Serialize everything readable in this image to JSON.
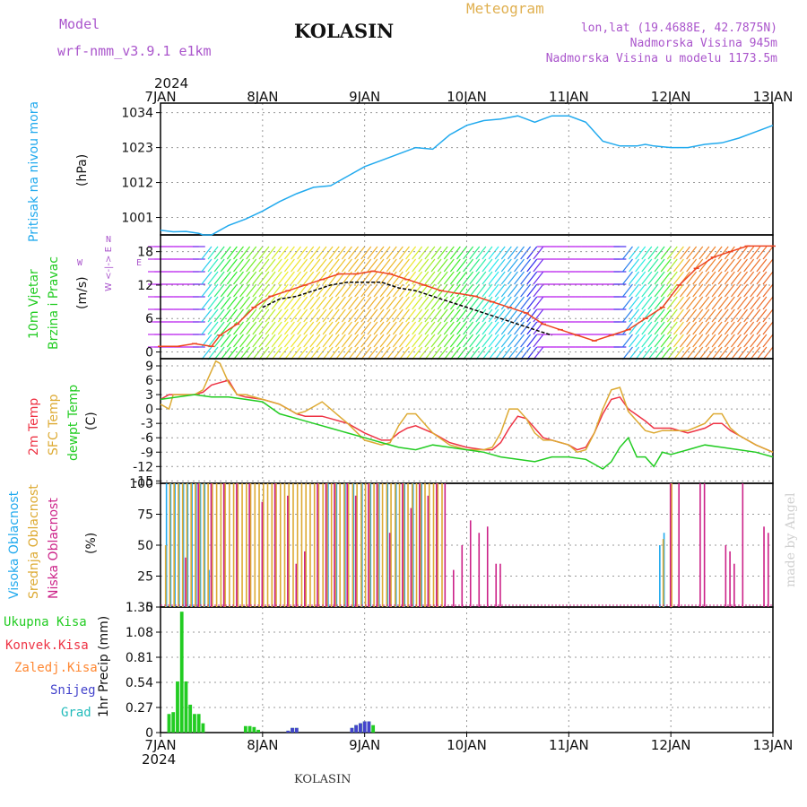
{
  "header": {
    "model_label": "Model",
    "model_name": "wrf-nmm_v3.9.1  e1km",
    "station": "KOLASIN",
    "meteogram": "Meteogram",
    "lonlat": "lon,lat (19.4688E, 42.7875N)",
    "elevation": "Nadmorska Visina 945m",
    "model_elevation": "Nadmorska Visina u modelu 1173.5m",
    "year_top": "2024",
    "year_bottom": "2024",
    "footer": "KOLASIN",
    "watermark": "made by Angel"
  },
  "colors": {
    "pressure": "#22aaee",
    "temp2m": "#ee3344",
    "sfc": "#ddaa33",
    "dew": "#22cc22",
    "high": "#22aaee",
    "mid": "#ddaa33",
    "low": "#cc2288",
    "total": "#22cc22",
    "conv": "#ee3344",
    "frozen": "#ff8833",
    "snow": "#4444cc",
    "grad": "#22bbbb"
  },
  "axis_labels": {
    "pressure": [
      "Pritisak na nivou mora",
      "(hPa)"
    ],
    "wind": [
      "10m Vjetar",
      "Brzina i Pravac",
      "(m/s)"
    ],
    "compass": [
      "N",
      "W <-|-> E",
      "S"
    ],
    "temp": [
      "2m Temp",
      "SFC Temp",
      "dewpt Temp",
      "(C)"
    ],
    "cloud": [
      "Visoka Oblacnost",
      "Srednja Oblacnost",
      "Niska Oblacnost",
      "(%)"
    ],
    "precip": [
      "1hr Precip",
      "(mm)"
    ],
    "precip_legend": [
      "Ukupna Kisa",
      "Konvek.Kisa",
      "Zaledj.Kisa",
      "Snijeg",
      "Grad"
    ]
  },
  "chart_data": [
    {
      "type": "line",
      "name": "pressure",
      "x_ticks": [
        "7JAN",
        "8JAN",
        "9JAN",
        "10JAN",
        "11JAN",
        "12JAN",
        "13JAN"
      ],
      "y_ticks": [
        1001,
        1012,
        1023,
        1034
      ],
      "ylim": [
        995.5,
        1037
      ],
      "xlim": [
        0,
        144
      ],
      "grid": true,
      "series": [
        {
          "color_key": "pressure",
          "x": [
            0,
            3,
            6,
            9,
            10,
            12,
            14,
            16,
            20,
            24,
            28,
            32,
            36,
            40,
            44,
            48,
            52,
            56,
            60,
            64,
            68,
            72,
            76,
            80,
            84,
            86,
            88,
            90,
            92,
            96,
            100,
            104,
            108,
            112,
            114,
            116,
            120,
            124,
            128,
            132,
            136,
            140,
            144
          ],
          "y": [
            997,
            996.5,
            996.6,
            996,
            995.5,
            995.5,
            997,
            998.5,
            1000.5,
            1003,
            1006,
            1008.5,
            1010.5,
            1011,
            1014,
            1017,
            1019,
            1021,
            1023,
            1022.5,
            1027,
            1030,
            1031.5,
            1032,
            1033,
            1032,
            1031,
            1032,
            1033,
            1033,
            1031,
            1025,
            1023.5,
            1023.5,
            1024,
            1023.5,
            1023,
            1023,
            1024,
            1024.5,
            1026,
            1028,
            1030
          ]
        }
      ]
    },
    {
      "type": "line",
      "name": "wind",
      "x_ticks": [
        "7JAN",
        "8JAN",
        "9JAN",
        "10JAN",
        "11JAN",
        "12JAN",
        "13JAN"
      ],
      "y_ticks": [
        0,
        6,
        12,
        18
      ],
      "ylim": [
        -1.2,
        21
      ],
      "xlim": [
        0,
        144
      ],
      "grid": true,
      "series": [
        {
          "name": "speed",
          "color": "#000000",
          "x": [
            24,
            28,
            32,
            36,
            40,
            44,
            48,
            52,
            56,
            60,
            64,
            68,
            72,
            76,
            80,
            84,
            88,
            92
          ],
          "y": [
            8,
            9.5,
            10,
            11,
            12,
            12.5,
            12.5,
            12.5,
            11.5,
            11,
            10,
            9,
            8,
            7,
            6,
            5,
            4,
            3
          ]
        },
        {
          "name": "gust",
          "color": "#ee4422",
          "x": [
            0,
            4,
            8,
            12,
            14,
            18,
            22,
            26,
            30,
            34,
            38,
            42,
            46,
            50,
            54,
            58,
            62,
            66,
            70,
            74,
            78,
            82,
            86,
            90,
            94,
            98,
            102,
            106,
            110,
            114,
            118,
            122,
            126,
            130,
            134,
            138,
            144
          ],
          "y": [
            1,
            1,
            1.5,
            1,
            3,
            5,
            8,
            10,
            11,
            12,
            13,
            14,
            14,
            14.5,
            14,
            13,
            12,
            11,
            10.5,
            10,
            9,
            8,
            7,
            5,
            4,
            3,
            2,
            3,
            4,
            6,
            8,
            12,
            15,
            17,
            18,
            19,
            19
          ]
        }
      ]
    },
    {
      "type": "line",
      "name": "temperature",
      "x_ticks": [
        "7JAN",
        "8JAN",
        "9JAN",
        "10JAN",
        "11JAN",
        "12JAN",
        "13JAN"
      ],
      "y_ticks": [
        -15,
        -12,
        -9,
        -6,
        -3,
        0,
        3,
        6,
        9
      ],
      "ylim": [
        -15.5,
        10.5
      ],
      "xlim": [
        0,
        144
      ],
      "grid": true,
      "series": [
        {
          "color_key": "temp2m",
          "x": [
            0,
            2,
            4,
            8,
            10,
            12,
            14,
            16,
            18,
            20,
            24,
            28,
            30,
            32,
            34,
            36,
            38,
            40,
            44,
            48,
            52,
            54,
            56,
            58,
            60,
            64,
            68,
            72,
            76,
            78,
            80,
            82,
            84,
            86,
            88,
            90,
            92,
            96,
            98,
            100,
            102,
            104,
            106,
            108,
            110,
            114,
            116,
            118,
            120,
            124,
            128,
            130,
            132,
            134,
            136,
            140,
            144
          ],
          "y": [
            2,
            3,
            3,
            3,
            3.5,
            5,
            5.5,
            6,
            3,
            2.5,
            2,
            1,
            0,
            -1,
            -1.5,
            -1.5,
            -1.5,
            -2,
            -3,
            -5,
            -6.5,
            -6.5,
            -5,
            -4,
            -3.5,
            -5,
            -7,
            -8,
            -8.5,
            -8.5,
            -7,
            -4,
            -1.5,
            -2,
            -4,
            -6,
            -6.5,
            -7.5,
            -8.5,
            -8,
            -5,
            -1,
            2,
            2.5,
            0,
            -2.5,
            -4,
            -4,
            -4,
            -5,
            -4,
            -3,
            -3,
            -4.5,
            -5.5,
            -7.5,
            -9
          ]
        },
        {
          "color_key": "sfc",
          "x": [
            0,
            2,
            3,
            4,
            8,
            10,
            12,
            13,
            14,
            16,
            18,
            20,
            24,
            28,
            30,
            32,
            34,
            36,
            38,
            40,
            44,
            48,
            52,
            54,
            56,
            58,
            60,
            64,
            68,
            72,
            76,
            78,
            80,
            82,
            84,
            86,
            88,
            90,
            92,
            96,
            98,
            100,
            102,
            104,
            106,
            108,
            110,
            114,
            116,
            118,
            120,
            124,
            128,
            130,
            132,
            134,
            136,
            140,
            144
          ],
          "y": [
            1,
            0,
            3,
            3,
            3,
            4,
            8,
            10,
            9.5,
            5.5,
            3,
            3,
            2,
            1,
            0,
            -1,
            -0.5,
            0.5,
            1.5,
            0,
            -3,
            -6.5,
            -7.5,
            -7,
            -3.5,
            -1,
            -1,
            -5,
            -7.5,
            -8.5,
            -8.5,
            -8,
            -5,
            0,
            0,
            -2,
            -5,
            -6.5,
            -6.5,
            -7.5,
            -9,
            -8.5,
            -5,
            0,
            4,
            4.5,
            -0.5,
            -4.5,
            -5,
            -4.5,
            -4.5,
            -4.5,
            -3,
            -1,
            -1,
            -4,
            -5.5,
            -7.5,
            -9
          ]
        },
        {
          "color_key": "dew",
          "x": [
            0,
            4,
            8,
            12,
            16,
            20,
            24,
            28,
            32,
            36,
            40,
            44,
            48,
            52,
            56,
            60,
            64,
            68,
            72,
            76,
            80,
            84,
            88,
            92,
            96,
            100,
            104,
            106,
            108,
            110,
            112,
            114,
            116,
            118,
            120,
            124,
            128,
            132,
            136,
            140,
            144
          ],
          "y": [
            2,
            2.5,
            3,
            2.5,
            2.5,
            2,
            1.5,
            -1,
            -2,
            -3,
            -4,
            -5,
            -6,
            -7,
            -8,
            -8.5,
            -7.5,
            -8,
            -8.5,
            -9,
            -10,
            -10.5,
            -11,
            -10,
            -10,
            -10.5,
            -12.5,
            -11,
            -8,
            -6,
            -10,
            -10,
            -12,
            -9,
            -9.5,
            -8.5,
            -7.5,
            -8,
            -8.5,
            -9,
            -10
          ]
        }
      ]
    },
    {
      "type": "bar",
      "name": "cloud",
      "x_ticks": [
        "7JAN",
        "8JAN",
        "9JAN",
        "10JAN",
        "11JAN",
        "12JAN",
        "13JAN"
      ],
      "y_ticks": [
        0,
        25,
        50,
        75,
        100
      ],
      "ylim": [
        0,
        100
      ],
      "xlim": [
        0,
        144
      ],
      "grid": true,
      "series": [
        {
          "color_key": "high",
          "x": [
            2,
            3,
            4,
            5,
            6,
            7,
            8,
            9,
            10,
            11,
            12,
            40,
            42,
            44,
            46,
            48,
            50,
            52,
            54,
            56,
            58,
            60,
            62,
            118,
            119
          ],
          "y": [
            100,
            100,
            100,
            100,
            100,
            100,
            100,
            100,
            100,
            100,
            30,
            100,
            100,
            100,
            100,
            100,
            100,
            100,
            100,
            100,
            100,
            100,
            100,
            50,
            60
          ]
        },
        {
          "color_key": "mid",
          "x": [
            1,
            2,
            3,
            4,
            5,
            6,
            7,
            8,
            9,
            10,
            11,
            12,
            13,
            14,
            15,
            16,
            17,
            18,
            19,
            20,
            21,
            22,
            23,
            24,
            25,
            26,
            27,
            28,
            29,
            30,
            31,
            32,
            33,
            34,
            35,
            36,
            37,
            38,
            39,
            40,
            41,
            42,
            43,
            44,
            45,
            46,
            47,
            48,
            49,
            50,
            51,
            52,
            53,
            54,
            55,
            56,
            57,
            58,
            59,
            60,
            61,
            62,
            63,
            64,
            65,
            66,
            118,
            120
          ],
          "y": [
            50,
            100,
            100,
            100,
            100,
            100,
            100,
            100,
            100,
            100,
            100,
            100,
            100,
            100,
            100,
            100,
            100,
            100,
            100,
            100,
            100,
            100,
            100,
            100,
            100,
            100,
            100,
            100,
            100,
            100,
            100,
            100,
            100,
            100,
            100,
            100,
            100,
            100,
            100,
            100,
            100,
            100,
            100,
            100,
            100,
            100,
            100,
            100,
            100,
            100,
            100,
            100,
            100,
            100,
            100,
            100,
            100,
            100,
            100,
            100,
            100,
            100,
            100,
            100,
            100,
            100,
            55,
            100
          ]
        },
        {
          "color_key": "low",
          "x": [
            5,
            8,
            11,
            14,
            17,
            20,
            23,
            26,
            29,
            31,
            33,
            36,
            38,
            40,
            43,
            45,
            48,
            50,
            53,
            56,
            58,
            60,
            62,
            64,
            66,
            68,
            70,
            72,
            74,
            76,
            78,
            79,
            80,
            119,
            121,
            126,
            127,
            132,
            133,
            134,
            136,
            141,
            142
          ],
          "y": [
            40,
            100,
            100,
            100,
            100,
            100,
            85,
            100,
            90,
            35,
            45,
            100,
            100,
            100,
            100,
            90,
            100,
            100,
            60,
            100,
            80,
            100,
            90,
            100,
            100,
            30,
            50,
            70,
            60,
            65,
            35,
            35,
            0,
            100,
            100,
            100,
            100,
            50,
            45,
            35,
            100,
            65,
            60
          ]
        }
      ]
    },
    {
      "type": "bar",
      "name": "precip",
      "x_ticks": [
        "7JAN",
        "8JAN",
        "9JAN",
        "10JAN",
        "11JAN",
        "12JAN",
        "13JAN"
      ],
      "y_ticks": [
        0,
        0.27,
        0.54,
        0.81,
        1.08,
        1.35
      ],
      "ylim": [
        0,
        1.35
      ],
      "xlim": [
        0,
        144
      ],
      "grid": true,
      "series": [
        {
          "color_key": "total",
          "x": [
            2,
            3,
            4,
            5,
            6,
            7,
            8,
            9,
            10,
            20,
            21,
            22,
            23,
            30,
            31,
            32,
            45,
            46,
            47,
            48,
            49,
            50
          ],
          "y": [
            0.2,
            0.22,
            0.55,
            1.3,
            0.55,
            0.3,
            0.2,
            0.2,
            0.1,
            0.07,
            0.07,
            0.06,
            0.03,
            0.02,
            0.05,
            0.05,
            0.05,
            0.08,
            0.1,
            0.12,
            0.12,
            0.08
          ]
        },
        {
          "color_key": "snow",
          "x": [
            30,
            31,
            32,
            45,
            46,
            47,
            48,
            49
          ],
          "y": [
            0.02,
            0.05,
            0.05,
            0.05,
            0.08,
            0.1,
            0.12,
            0.12
          ]
        }
      ]
    }
  ]
}
